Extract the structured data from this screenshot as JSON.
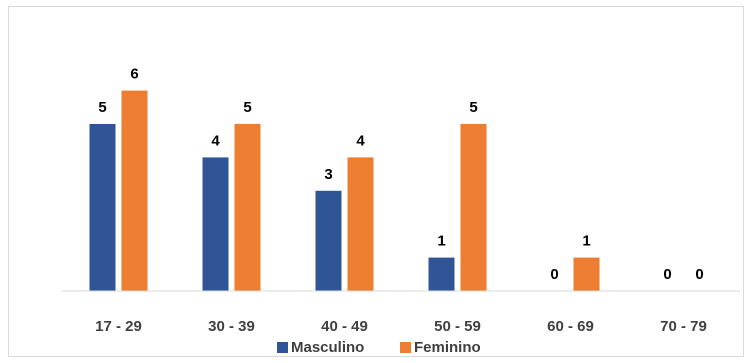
{
  "chart_data": {
    "type": "bar",
    "categories": [
      "17 - 29",
      "30 - 39",
      "40 - 49",
      "50 - 59",
      "60 - 69",
      "70 - 79"
    ],
    "series": [
      {
        "name": "Masculino",
        "values": [
          5,
          4,
          3,
          1,
          0,
          0
        ],
        "color": "#2f5597"
      },
      {
        "name": "Feminino",
        "values": [
          6,
          5,
          4,
          5,
          1,
          0
        ],
        "color": "#ed7d31"
      }
    ],
    "ylim": [
      0,
      7
    ],
    "grid": false,
    "data_labels": true,
    "legend_position": "bottom",
    "axis_color": "#d9d9d9"
  }
}
